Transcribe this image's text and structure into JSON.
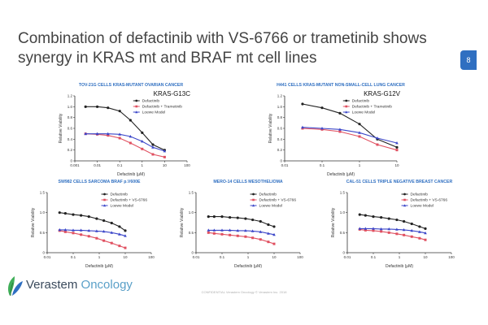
{
  "slide": {
    "title": "Combination of defactinib with VS-6766 or trametinib shows synergy in KRAS mt and BRAF mt cell lines",
    "page_number": "8",
    "logo": {
      "brand": "Verastem",
      "sub": "Oncology"
    },
    "footer": "CONFIDENTIAL  Verastem Oncology  © Verastem Inc. 2018"
  },
  "colors": {
    "defactinib": "#222222",
    "combo": "#e05060",
    "loewe": "#3a45c8",
    "title_blue": "#2f6fc1",
    "logo_leaf": "#3fae58"
  },
  "chart_data": [
    {
      "type": "line",
      "title": "TOV-21G CELLS KRAS-MUTANT OVARIAN CANCER",
      "mutation": "KRAS-G13C",
      "xlabel": "Defactinib (μM)",
      "ylabel": "Relative Viability",
      "xscale": "log",
      "xlim": [
        0.001,
        100
      ],
      "ylim": [
        0,
        1.2
      ],
      "xticks": [
        "0.001",
        "0.01",
        "0.1",
        "1",
        "10",
        "100"
      ],
      "yticks": [
        "0",
        "0.2",
        "0.4",
        "0.6",
        "0.8",
        "1.0",
        "1.2"
      ],
      "legend_position": "top-right",
      "series": [
        {
          "name": "Defactinib",
          "x": [
            0.003,
            0.01,
            0.03,
            0.1,
            0.3,
            1,
            3,
            10
          ],
          "values": [
            1.0,
            1.0,
            0.98,
            0.92,
            0.75,
            0.52,
            0.3,
            0.2
          ]
        },
        {
          "name": "Defactinib + Trametinib",
          "x": [
            0.003,
            0.01,
            0.03,
            0.1,
            0.3,
            1,
            3,
            10
          ],
          "values": [
            0.5,
            0.49,
            0.47,
            0.42,
            0.33,
            0.22,
            0.12,
            0.07
          ]
        },
        {
          "name": "Loewe Model",
          "x": [
            0.003,
            0.01,
            0.03,
            0.1,
            0.3,
            1,
            3,
            10
          ],
          "values": [
            0.5,
            0.5,
            0.5,
            0.49,
            0.45,
            0.36,
            0.25,
            0.18
          ]
        }
      ]
    },
    {
      "type": "line",
      "title": "H441 CELLS KRAS-MUTANT NON-SMALL-CELL LUNG CANCER",
      "mutation": "KRAS-G12V",
      "xlabel": "Defactinib (μM)",
      "ylabel": "Relative Viability",
      "xscale": "log",
      "xlim": [
        0.01,
        10
      ],
      "ylim": [
        0,
        1.2
      ],
      "xticks": [
        "0.01",
        "0.1",
        "1",
        "10"
      ],
      "yticks": [
        "0",
        "0.2",
        "0.4",
        "0.6",
        "0.8",
        "1.0",
        "1.2"
      ],
      "legend_position": "top-right",
      "series": [
        {
          "name": "Defactinib",
          "x": [
            0.03,
            0.1,
            0.3,
            1,
            3,
            10
          ],
          "values": [
            1.05,
            0.98,
            0.88,
            0.68,
            0.4,
            0.25
          ]
        },
        {
          "name": "Defactinib + Trametinib",
          "x": [
            0.03,
            0.1,
            0.3,
            1,
            3,
            10
          ],
          "values": [
            0.6,
            0.58,
            0.54,
            0.45,
            0.3,
            0.2
          ]
        },
        {
          "name": "Loewe Model",
          "x": [
            0.03,
            0.1,
            0.3,
            1,
            3,
            10
          ],
          "values": [
            0.62,
            0.6,
            0.58,
            0.52,
            0.42,
            0.33
          ]
        }
      ]
    },
    {
      "type": "line",
      "title": "SW982 CELLS SARCOMA BRAF p.V600E",
      "mutation": "",
      "xlabel": "Defactinib (μM)",
      "ylabel": "Relative Viability",
      "xscale": "log",
      "xlim": [
        0.01,
        100
      ],
      "ylim": [
        0,
        1.5
      ],
      "xticks": [
        "0.01",
        "0.1",
        "1",
        "10",
        "100"
      ],
      "yticks": [
        "0",
        "0.5",
        "1.0",
        "1.5"
      ],
      "legend_position": "top-right",
      "series": [
        {
          "name": "Defactinib",
          "x": [
            0.03,
            0.05,
            0.1,
            0.2,
            0.4,
            0.8,
            1.5,
            3,
            6,
            10
          ],
          "values": [
            1.0,
            0.98,
            0.95,
            0.93,
            0.9,
            0.85,
            0.8,
            0.74,
            0.65,
            0.55
          ]
        },
        {
          "name": "Defactinib + VS-6766",
          "x": [
            0.03,
            0.05,
            0.1,
            0.2,
            0.4,
            0.8,
            1.5,
            3,
            6,
            10
          ],
          "values": [
            0.55,
            0.52,
            0.49,
            0.45,
            0.41,
            0.36,
            0.3,
            0.24,
            0.17,
            0.12
          ]
        },
        {
          "name": "Loewe Model",
          "x": [
            0.03,
            0.05,
            0.1,
            0.2,
            0.4,
            0.8,
            1.5,
            3,
            6,
            10
          ],
          "values": [
            0.57,
            0.57,
            0.56,
            0.56,
            0.55,
            0.54,
            0.53,
            0.5,
            0.46,
            0.42
          ]
        }
      ]
    },
    {
      "type": "line",
      "title": "MERO-14 CELLS MESOTHELIOMA",
      "mutation": "",
      "xlabel": "Defactinib (μM)",
      "ylabel": "Relative Viability",
      "xscale": "log",
      "xlim": [
        0.01,
        100
      ],
      "ylim": [
        0,
        1.5
      ],
      "xticks": [
        "0.01",
        "0.1",
        "1",
        "10",
        "100"
      ],
      "yticks": [
        "0",
        "0.5",
        "1.0",
        "1.5"
      ],
      "legend_position": "top-right",
      "series": [
        {
          "name": "Defactinib",
          "x": [
            0.03,
            0.05,
            0.1,
            0.2,
            0.4,
            0.8,
            1.5,
            3,
            6,
            10
          ],
          "values": [
            0.9,
            0.9,
            0.9,
            0.88,
            0.87,
            0.85,
            0.82,
            0.78,
            0.7,
            0.65
          ]
        },
        {
          "name": "Defactinib + VS-6766",
          "x": [
            0.03,
            0.05,
            0.1,
            0.2,
            0.4,
            0.8,
            1.5,
            3,
            6,
            10
          ],
          "values": [
            0.5,
            0.48,
            0.46,
            0.44,
            0.42,
            0.4,
            0.37,
            0.33,
            0.27,
            0.22
          ]
        },
        {
          "name": "Loewe Model",
          "x": [
            0.03,
            0.05,
            0.1,
            0.2,
            0.4,
            0.8,
            1.5,
            3,
            6,
            10
          ],
          "values": [
            0.56,
            0.56,
            0.56,
            0.56,
            0.55,
            0.55,
            0.54,
            0.52,
            0.48,
            0.45
          ]
        }
      ]
    },
    {
      "type": "line",
      "title": "CAL-51 CELLS TRIPLE NEGATIVE BREAST CANCER",
      "mutation": "",
      "xlabel": "Defactinib (μM)",
      "ylabel": "Relative Viability",
      "xscale": "log",
      "xlim": [
        0.01,
        100
      ],
      "ylim": [
        0,
        1.5
      ],
      "xticks": [
        "0.01",
        "0.1",
        "1",
        "10",
        "100"
      ],
      "yticks": [
        "0",
        "0.5",
        "1.0",
        "1.5"
      ],
      "legend_position": "top-right",
      "series": [
        {
          "name": "Defactinib",
          "x": [
            0.03,
            0.05,
            0.1,
            0.2,
            0.4,
            0.8,
            1.5,
            3,
            6,
            10
          ],
          "values": [
            0.95,
            0.93,
            0.9,
            0.88,
            0.85,
            0.82,
            0.78,
            0.72,
            0.65,
            0.6
          ]
        },
        {
          "name": "Defactinib + VS-6766",
          "x": [
            0.03,
            0.05,
            0.1,
            0.2,
            0.4,
            0.8,
            1.5,
            3,
            6,
            10
          ],
          "values": [
            0.58,
            0.56,
            0.55,
            0.53,
            0.5,
            0.47,
            0.44,
            0.4,
            0.36,
            0.32
          ]
        },
        {
          "name": "Loewe Model",
          "x": [
            0.03,
            0.05,
            0.1,
            0.2,
            0.4,
            0.8,
            1.5,
            3,
            6,
            10
          ],
          "values": [
            0.6,
            0.6,
            0.6,
            0.59,
            0.59,
            0.58,
            0.57,
            0.55,
            0.52,
            0.49
          ]
        }
      ]
    }
  ]
}
